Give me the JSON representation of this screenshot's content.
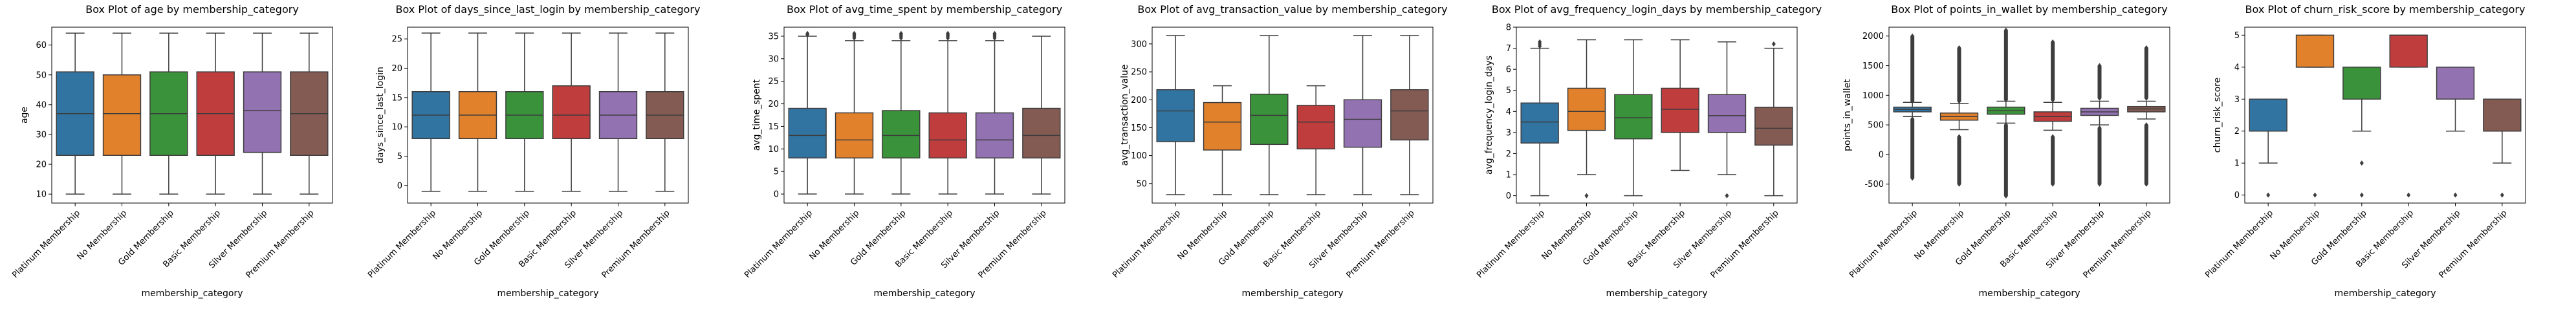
{
  "colors": {
    "Platinum Membership": "#3274a1",
    "No Membership": "#e1812c",
    "Gold Membership": "#3a923a",
    "Basic Membership": "#c03d3e",
    "Silver Membership": "#9372b2",
    "Premium Membership": "#845b53"
  },
  "chart_data": [
    {
      "type": "box",
      "title": "Box Plot of age by membership_category",
      "xlabel": "membership_category",
      "ylabel": "age",
      "categories": [
        "Platinum Membership",
        "No Membership",
        "Gold Membership",
        "Basic Membership",
        "Silver Membership",
        "Premium Membership"
      ],
      "ylim": [
        7,
        66
      ],
      "yticks": [
        10,
        20,
        30,
        40,
        50,
        60
      ],
      "boxes": [
        {
          "whislo": 10,
          "q1": 23,
          "med": 37,
          "q3": 51,
          "whishi": 64,
          "fliers": []
        },
        {
          "whislo": 10,
          "q1": 23,
          "med": 37,
          "q3": 50,
          "whishi": 64,
          "fliers": []
        },
        {
          "whislo": 10,
          "q1": 23,
          "med": 37,
          "q3": 51,
          "whishi": 64,
          "fliers": []
        },
        {
          "whislo": 10,
          "q1": 23,
          "med": 37,
          "q3": 51,
          "whishi": 64,
          "fliers": []
        },
        {
          "whislo": 10,
          "q1": 24,
          "med": 38,
          "q3": 51,
          "whishi": 64,
          "fliers": []
        },
        {
          "whislo": 10,
          "q1": 23,
          "med": 37,
          "q3": 51,
          "whishi": 64,
          "fliers": []
        }
      ]
    },
    {
      "type": "box",
      "title": "Box Plot of days_since_last_login by membership_category",
      "xlabel": "membership_category",
      "ylabel": "days_since_last_login",
      "categories": [
        "Platinum Membership",
        "No Membership",
        "Gold Membership",
        "Basic Membership",
        "Silver Membership",
        "Premium Membership"
      ],
      "ylim": [
        -3,
        27
      ],
      "yticks": [
        0,
        5,
        10,
        15,
        20,
        25
      ],
      "boxes": [
        {
          "whislo": -1,
          "q1": 8,
          "med": 12,
          "q3": 16,
          "whishi": 26,
          "fliers": []
        },
        {
          "whislo": -1,
          "q1": 8,
          "med": 12,
          "q3": 16,
          "whishi": 26,
          "fliers": []
        },
        {
          "whislo": -1,
          "q1": 8,
          "med": 12,
          "q3": 16,
          "whishi": 26,
          "fliers": []
        },
        {
          "whislo": -1,
          "q1": 8,
          "med": 12,
          "q3": 17,
          "whishi": 26,
          "fliers": []
        },
        {
          "whislo": -1,
          "q1": 8,
          "med": 12,
          "q3": 16,
          "whishi": 26,
          "fliers": []
        },
        {
          "whislo": -1,
          "q1": 8,
          "med": 12,
          "q3": 16,
          "whishi": 26,
          "fliers": []
        }
      ]
    },
    {
      "type": "box",
      "title": "Box Plot of avg_time_spent by membership_category",
      "xlabel": "membership_category",
      "ylabel": "avg_time_spent",
      "categories": [
        "Platinum Membership",
        "No Membership",
        "Gold Membership",
        "Basic Membership",
        "Silver Membership",
        "Premium Membership"
      ],
      "ylim": [
        -2,
        37
      ],
      "yticks": [
        0,
        5,
        10,
        15,
        20,
        25,
        30,
        35
      ],
      "boxes": [
        {
          "whislo": 0,
          "q1": 8,
          "med": 13,
          "q3": 19,
          "whishi": 35,
          "fliers": [
            35.3,
            35.6
          ]
        },
        {
          "whislo": 0,
          "q1": 8,
          "med": 12,
          "q3": 18,
          "whishi": 34,
          "fliers": [
            34.6,
            35,
            35.3,
            35.6
          ]
        },
        {
          "whislo": 0,
          "q1": 8,
          "med": 13,
          "q3": 18.5,
          "whishi": 34,
          "fliers": [
            34.6,
            35,
            35.3,
            35.6
          ]
        },
        {
          "whislo": 0,
          "q1": 8,
          "med": 12,
          "q3": 18,
          "whishi": 34,
          "fliers": [
            34.6,
            35,
            35.3,
            35.6
          ]
        },
        {
          "whislo": 0,
          "q1": 8,
          "med": 12,
          "q3": 18,
          "whishi": 34,
          "fliers": [
            34.6,
            35,
            35.3,
            35.6
          ]
        },
        {
          "whislo": 0,
          "q1": 8,
          "med": 13,
          "q3": 19,
          "whishi": 35,
          "fliers": []
        }
      ]
    },
    {
      "type": "box",
      "title": "Box Plot of avg_transaction_value by membership_category",
      "xlabel": "membership_category",
      "ylabel": "avg_transaction_value",
      "categories": [
        "Platinum Membership",
        "No Membership",
        "Gold Membership",
        "Basic Membership",
        "Silver Membership",
        "Premium Membership"
      ],
      "ylim": [
        15,
        330
      ],
      "yticks": [
        50,
        100,
        150,
        200,
        250,
        300
      ],
      "boxes": [
        {
          "whislo": 30,
          "q1": 125,
          "med": 180,
          "q3": 218,
          "whishi": 315,
          "fliers": []
        },
        {
          "whislo": 30,
          "q1": 110,
          "med": 160,
          "q3": 195,
          "whishi": 225,
          "fliers": []
        },
        {
          "whislo": 30,
          "q1": 120,
          "med": 172,
          "q3": 210,
          "whishi": 315,
          "fliers": []
        },
        {
          "whislo": 30,
          "q1": 112,
          "med": 160,
          "q3": 190,
          "whishi": 225,
          "fliers": []
        },
        {
          "whislo": 30,
          "q1": 115,
          "med": 165,
          "q3": 200,
          "whishi": 315,
          "fliers": []
        },
        {
          "whislo": 30,
          "q1": 128,
          "med": 180,
          "q3": 218,
          "whishi": 315,
          "fliers": []
        }
      ]
    },
    {
      "type": "box",
      "title": "Box Plot of avg_frequency_login_days by membership_category",
      "xlabel": "membership_category",
      "ylabel": "avg_frequency_login_days",
      "categories": [
        "Platinum Membership",
        "No Membership",
        "Gold Membership",
        "Basic Membership",
        "Silver Membership",
        "Premium Membership"
      ],
      "ylim": [
        -0.35,
        8
      ],
      "yticks": [
        0,
        1,
        2,
        3,
        4,
        5,
        6,
        7,
        8
      ],
      "boxes": [
        {
          "whislo": 0,
          "q1": 2.5,
          "med": 3.5,
          "q3": 4.4,
          "whishi": 7,
          "fliers": [
            7.1,
            7.2,
            7.3
          ]
        },
        {
          "whislo": 1,
          "q1": 3.1,
          "med": 4.0,
          "q3": 5.1,
          "whishi": 7.4,
          "fliers": [
            0
          ]
        },
        {
          "whislo": 0,
          "q1": 2.7,
          "med": 3.7,
          "q3": 4.8,
          "whishi": 7.4,
          "fliers": []
        },
        {
          "whislo": 1.2,
          "q1": 3.0,
          "med": 4.1,
          "q3": 5.1,
          "whishi": 7.4,
          "fliers": []
        },
        {
          "whislo": 1,
          "q1": 3.0,
          "med": 3.8,
          "q3": 4.8,
          "whishi": 7.3,
          "fliers": [
            0
          ]
        },
        {
          "whislo": 0,
          "q1": 2.4,
          "med": 3.2,
          "q3": 4.2,
          "whishi": 7,
          "fliers": [
            7.2
          ]
        }
      ]
    },
    {
      "type": "box",
      "title": "Box Plot of points_in_wallet by membership_category",
      "xlabel": "membership_category",
      "ylabel": "points_in_wallet",
      "categories": [
        "Platinum Membership",
        "No Membership",
        "Gold Membership",
        "Basic Membership",
        "Silver Membership",
        "Premium Membership"
      ],
      "ylim": [
        -820,
        2150
      ],
      "yticks": [
        -500,
        0,
        500,
        1000,
        1500,
        2000
      ],
      "boxes": [
        {
          "whislo": 640,
          "q1": 720,
          "med": 760,
          "q3": 800,
          "whishi": 880,
          "fliers": [
            -400,
            -200,
            0,
            200,
            400,
            600,
            900,
            1100,
            1300,
            1500,
            1700,
            2000
          ]
        },
        {
          "whislo": 420,
          "q1": 580,
          "med": 640,
          "q3": 700,
          "whishi": 860,
          "fliers": [
            -500,
            -300,
            -100,
            100,
            300,
            900,
            1100,
            1300,
            1500,
            1800
          ]
        },
        {
          "whislo": 530,
          "q1": 680,
          "med": 740,
          "q3": 800,
          "whishi": 900,
          "fliers": [
            -700,
            -500,
            -300,
            -100,
            100,
            300,
            500,
            920,
            1100,
            1300,
            1500,
            1700,
            1900,
            2100
          ]
        },
        {
          "whislo": 410,
          "q1": 560,
          "med": 640,
          "q3": 720,
          "whishi": 880,
          "fliers": [
            -500,
            -300,
            -100,
            100,
            300,
            920,
            1100,
            1300,
            1500,
            1700,
            1900
          ]
        },
        {
          "whislo": 500,
          "q1": 660,
          "med": 720,
          "q3": 780,
          "whishi": 900,
          "fliers": [
            -500,
            -300,
            -100,
            100,
            300,
            450,
            950,
            1100,
            1300,
            1500
          ]
        },
        {
          "whislo": 600,
          "q1": 720,
          "med": 770,
          "q3": 810,
          "whishi": 900,
          "fliers": [
            -500,
            -300,
            -100,
            100,
            300,
            500,
            950,
            1100,
            1300,
            1500,
            1700,
            1800
          ]
        }
      ]
    },
    {
      "type": "box",
      "title": "Box Plot of churn_risk_score by membership_category",
      "xlabel": "membership_category",
      "ylabel": "churn_risk_score",
      "categories": [
        "Platinum Membership",
        "No Membership",
        "Gold Membership",
        "Basic Membership",
        "Silver Membership",
        "Premium Membership"
      ],
      "ylim": [
        -0.25,
        5.25
      ],
      "yticks": [
        0,
        1,
        2,
        3,
        4,
        5
      ],
      "boxes": [
        {
          "whislo": 1,
          "q1": 2,
          "med": 2,
          "q3": 3,
          "whishi": 3,
          "fliers": [
            0
          ]
        },
        {
          "whislo": 4,
          "q1": 4,
          "med": 4,
          "q3": 5,
          "whishi": 5,
          "fliers": [
            0
          ]
        },
        {
          "whislo": 2,
          "q1": 3,
          "med": 3,
          "q3": 4,
          "whishi": 4,
          "fliers": [
            0,
            1
          ]
        },
        {
          "whislo": 4,
          "q1": 4,
          "med": 5,
          "q3": 5,
          "whishi": 5,
          "fliers": [
            0
          ]
        },
        {
          "whislo": 2,
          "q1": 3,
          "med": 3,
          "q3": 4,
          "whishi": 4,
          "fliers": [
            0
          ]
        },
        {
          "whislo": 1,
          "q1": 2,
          "med": 2,
          "q3": 3,
          "whishi": 3,
          "fliers": [
            0
          ]
        }
      ]
    }
  ]
}
